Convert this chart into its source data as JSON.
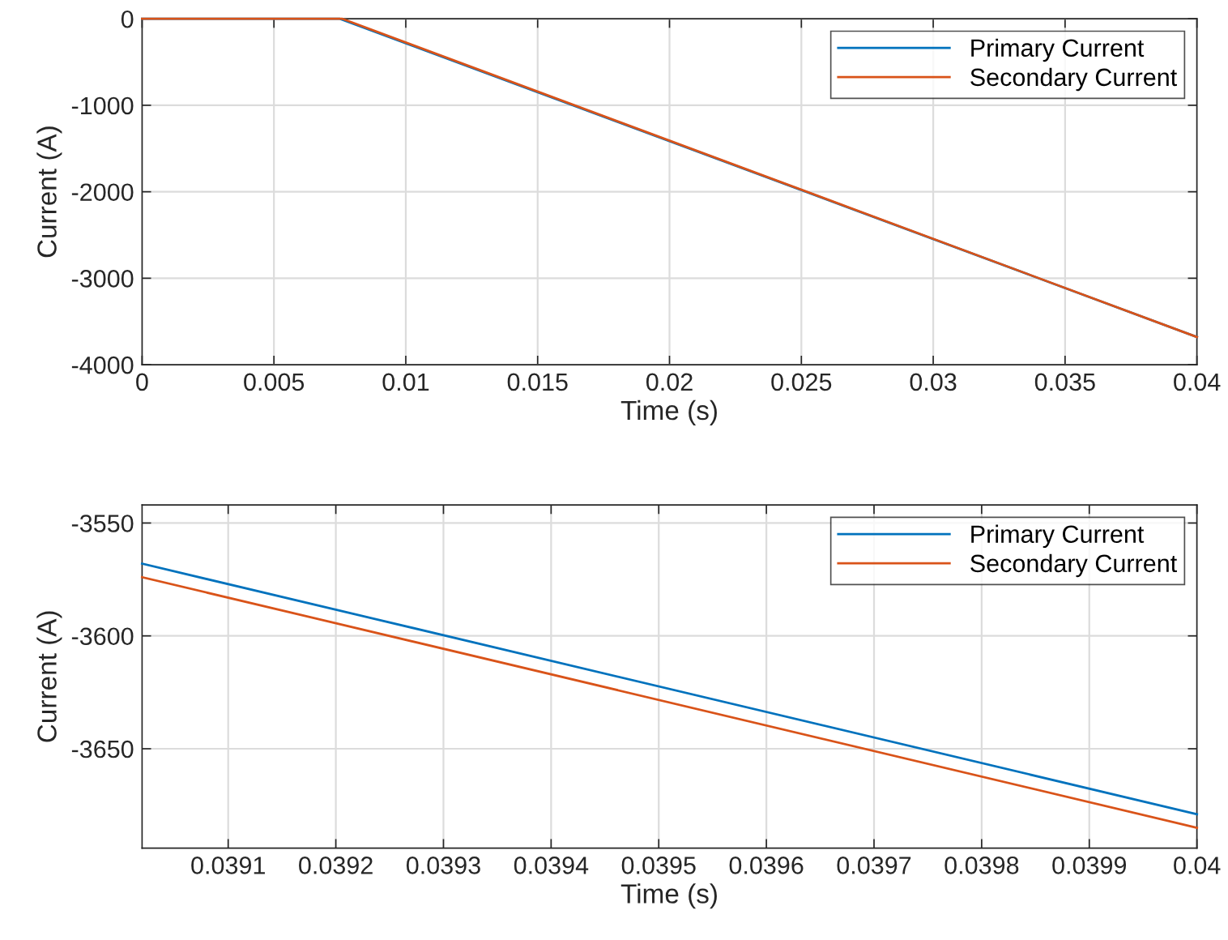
{
  "chart_data": [
    {
      "type": "line",
      "xlabel": "Time (s)",
      "ylabel": "Current (A)",
      "xlim": [
        0,
        0.04
      ],
      "xticks": [
        0,
        0.005,
        0.01,
        0.015,
        0.02,
        0.025,
        0.03,
        0.035,
        0.04
      ],
      "ylim": [
        -4000,
        0
      ],
      "yticks": [
        -4000,
        -3000,
        -2000,
        -1000,
        0
      ],
      "grid": true,
      "legend": "top right",
      "series": [
        {
          "name": "Primary Current",
          "color": "#0072bd",
          "x": [
            0,
            0.0075,
            0.04
          ],
          "values": [
            0,
            0,
            -3680
          ]
        },
        {
          "name": "Secondary Current",
          "color": "#d95319",
          "x": [
            0,
            0.0076,
            0.04
          ],
          "values": [
            0,
            0,
            -3680
          ]
        }
      ]
    },
    {
      "type": "line",
      "xlabel": "Time (s)",
      "ylabel": "Current (A)",
      "xlim": [
        0.03902,
        0.04
      ],
      "xticks": [
        0.0391,
        0.0392,
        0.0393,
        0.0394,
        0.0395,
        0.0396,
        0.0397,
        0.0398,
        0.0399,
        0.04
      ],
      "ylim": [
        -3694,
        -3542
      ],
      "yticks": [
        -3650,
        -3600,
        -3550
      ],
      "grid": true,
      "legend": "top right",
      "series": [
        {
          "name": "Primary Current",
          "color": "#0072bd",
          "x": [
            0.03902,
            0.04
          ],
          "values": [
            -3568,
            -3679
          ]
        },
        {
          "name": "Secondary Current",
          "color": "#d95319",
          "x": [
            0.03902,
            0.04
          ],
          "values": [
            -3574,
            -3685
          ]
        }
      ]
    }
  ]
}
